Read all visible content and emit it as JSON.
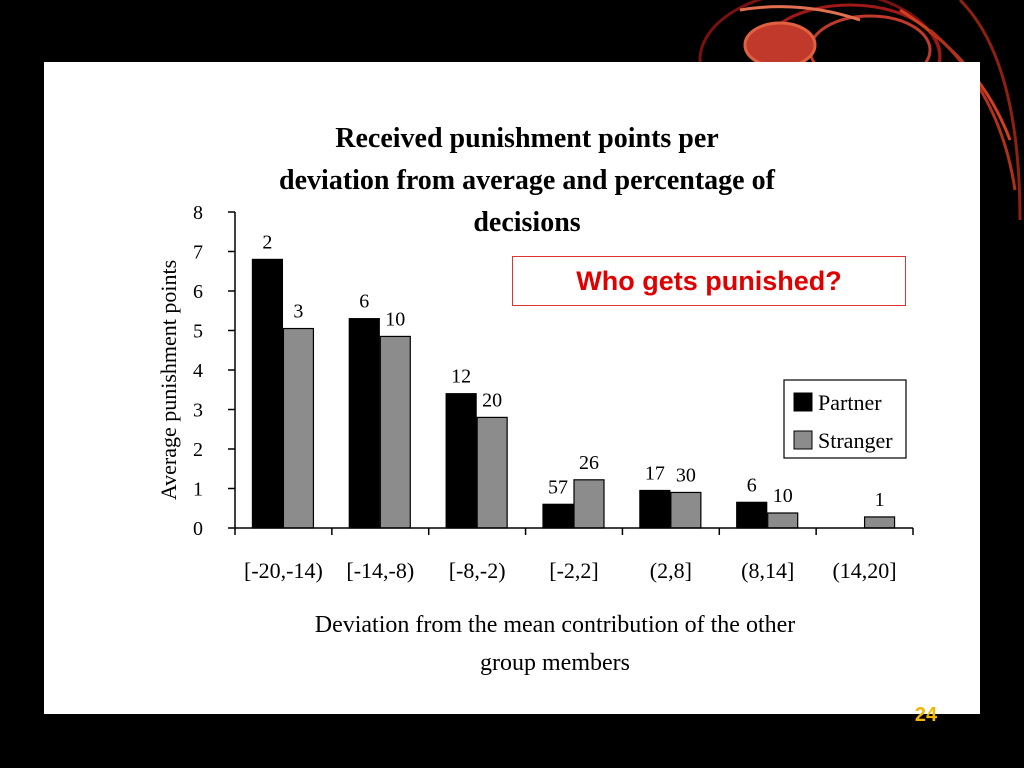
{
  "slide": {
    "callout": "Who gets punished?",
    "number": "24",
    "decoration_color": "#c0392b"
  },
  "chart_data": {
    "type": "bar",
    "title": "Received punishment points per deviation from average and percentage of decisions",
    "title_lines": [
      "Received punishment points per",
      "deviation from average and percentage of",
      "decisions"
    ],
    "xlabel": "Deviation from the mean contribution of the other group members",
    "xlabel_lines": [
      "Deviation from the mean contribution of the other",
      "group members"
    ],
    "ylabel": "Average punishment points",
    "ylim": [
      0,
      8
    ],
    "yticks": [
      "0",
      "1",
      "2",
      "3",
      "4",
      "5",
      "6",
      "7",
      "8"
    ],
    "categories": [
      "[-20,-14)",
      "[-14,-8)",
      "[-8,-2)",
      "[-2,2]",
      "(2,8]",
      "(8,14]",
      "(14,20]"
    ],
    "series": [
      {
        "name": "Partner",
        "color": "#000000",
        "values": [
          6.8,
          5.3,
          3.4,
          0.6,
          0.95,
          0.65,
          null
        ],
        "labels": [
          "2",
          "6",
          "12",
          "57",
          "17",
          "6",
          ""
        ]
      },
      {
        "name": "Stranger",
        "color": "#8c8c8c",
        "values": [
          5.05,
          4.85,
          2.8,
          1.22,
          0.9,
          0.38,
          0.28
        ],
        "labels": [
          "3",
          "10",
          "20",
          "26",
          "30",
          "10",
          "1"
        ]
      }
    ],
    "legend": {
      "position": "right"
    },
    "grid": false
  }
}
